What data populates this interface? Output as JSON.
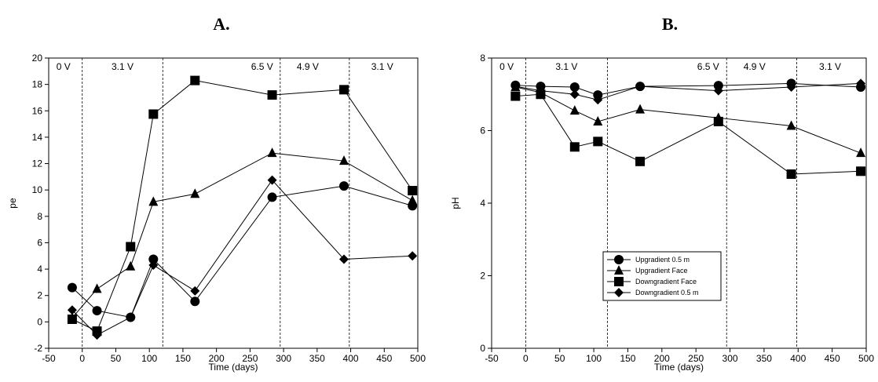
{
  "chart_data": [
    {
      "type": "line",
      "panel_title": "A.",
      "xlabel": "Time (days)",
      "ylabel": "pe",
      "xlim": [
        -50,
        500
      ],
      "ylim": [
        -2,
        20
      ],
      "x_ticks": [
        "-50",
        "0",
        "50",
        "100",
        "150",
        "200",
        "250",
        "300",
        "350",
        "400",
        "450",
        "500"
      ],
      "y_ticks": [
        "-2",
        "0",
        "2",
        "4",
        "6",
        "8",
        "10",
        "12",
        "14",
        "16",
        "18",
        "20"
      ],
      "phase_boundaries": [
        0,
        120,
        295,
        398
      ],
      "phase_labels": [
        {
          "text": "0 V",
          "x": -28
        },
        {
          "text": "3.1 V",
          "x": 60
        },
        {
          "text": "6.5 V",
          "x": 268
        },
        {
          "text": "4.9 V",
          "x": 336
        },
        {
          "text": "3.1 V",
          "x": 447
        }
      ],
      "series": [
        {
          "marker": "circle",
          "x": [
            -15,
            22,
            72,
            106,
            168,
            283,
            390,
            492
          ],
          "y": [
            2.6,
            0.85,
            0.35,
            4.75,
            1.55,
            9.45,
            10.3,
            8.8
          ]
        },
        {
          "marker": "triangle",
          "x": [
            -15,
            22,
            72,
            106,
            168,
            283,
            390,
            492
          ],
          "y": [
            0.3,
            2.5,
            4.2,
            9.1,
            9.7,
            12.8,
            12.2,
            9.2
          ]
        },
        {
          "marker": "square",
          "x": [
            -15,
            22,
            72,
            106,
            168,
            283,
            390,
            492
          ],
          "y": [
            0.2,
            -0.7,
            5.7,
            15.75,
            18.3,
            17.2,
            17.6,
            9.95
          ]
        },
        {
          "marker": "diamond",
          "x": [
            -15,
            22,
            72,
            106,
            168,
            283,
            390,
            492
          ],
          "y": [
            0.9,
            -1.0,
            0.35,
            4.3,
            2.35,
            10.75,
            4.75,
            5.0
          ]
        }
      ]
    },
    {
      "type": "line",
      "panel_title": "B.",
      "xlabel": "Time (days)",
      "ylabel": "pH",
      "xlim": [
        -50,
        500
      ],
      "ylim": [
        0,
        8
      ],
      "x_ticks": [
        "-50",
        "0",
        "50",
        "100",
        "150",
        "200",
        "250",
        "300",
        "350",
        "400",
        "450",
        "500"
      ],
      "y_ticks": [
        "0",
        "2",
        "4",
        "6",
        "8"
      ],
      "phase_boundaries": [
        0,
        120,
        295,
        398
      ],
      "phase_labels": [
        {
          "text": "0 V",
          "x": -28
        },
        {
          "text": "3.1 V",
          "x": 60
        },
        {
          "text": "6.5 V",
          "x": 268
        },
        {
          "text": "4.9 V",
          "x": 336
        },
        {
          "text": "3.1 V",
          "x": 447
        }
      ],
      "legend": {
        "position": "center-lower",
        "entries": [
          "Upgradient 0.5 m",
          "Upgradient Face",
          "Downgradient Face",
          "Downgradient 0.5 m"
        ]
      },
      "series": [
        {
          "name": "Upgradient 0.5 m",
          "marker": "circle",
          "x": [
            -15,
            22,
            72,
            106,
            168,
            283,
            390,
            492
          ],
          "y": [
            7.25,
            7.22,
            7.2,
            6.98,
            7.22,
            7.24,
            7.3,
            7.2
          ]
        },
        {
          "name": "Upgradient Face",
          "marker": "triangle",
          "x": [
            -15,
            22,
            72,
            106,
            168,
            283,
            390,
            492
          ],
          "y": [
            7.2,
            7.05,
            6.55,
            6.25,
            6.58,
            6.35,
            6.13,
            5.38
          ]
        },
        {
          "name": "Downgradient Face",
          "marker": "square",
          "x": [
            -15,
            22,
            72,
            106,
            168,
            283,
            390,
            492
          ],
          "y": [
            6.95,
            7.0,
            5.55,
            5.7,
            5.15,
            6.25,
            4.8,
            4.88
          ]
        },
        {
          "name": "Downgradient 0.5 m",
          "marker": "diamond",
          "x": [
            -15,
            22,
            72,
            106,
            168,
            283,
            390,
            492
          ],
          "y": [
            7.22,
            7.1,
            7.0,
            6.85,
            7.22,
            7.1,
            7.2,
            7.3
          ]
        }
      ]
    }
  ]
}
